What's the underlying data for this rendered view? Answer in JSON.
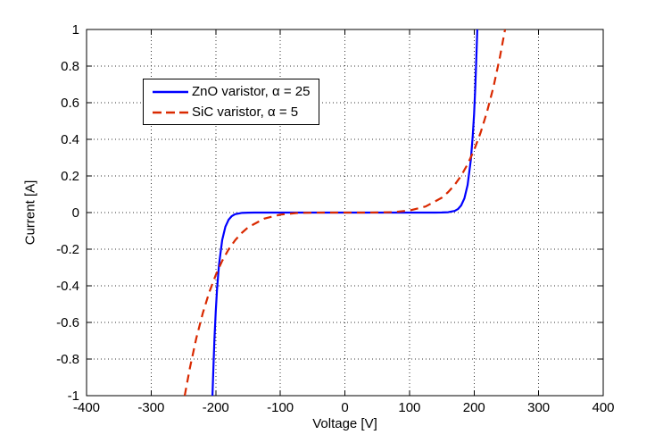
{
  "axes": {
    "xlabel": "Voltage [V]",
    "ylabel": "Current [A]",
    "xlim": [
      -400,
      400
    ],
    "ylim": [
      -1,
      1
    ],
    "xticks": [
      -400,
      -300,
      -200,
      -100,
      0,
      100,
      200,
      300,
      400
    ],
    "xtick_labels": [
      "-400",
      "-300",
      "-200",
      "-100",
      "0",
      "100",
      "200",
      "300",
      "400"
    ],
    "yticks": [
      -1,
      -0.8,
      -0.6,
      -0.4,
      -0.2,
      0,
      0.2,
      0.4,
      0.6,
      0.8,
      1
    ],
    "ytick_labels": [
      "-1",
      "-0.8",
      "-0.6",
      "-0.4",
      "-0.2",
      "0",
      "0.2",
      "0.4",
      "0.6",
      "0.8",
      "1"
    ],
    "grid_style": "dotted",
    "grid_color": "#333333",
    "axis_color": "#000000",
    "background": "#ffffff"
  },
  "legend": {
    "position": "upper-left-inside",
    "items": [
      {
        "label": "ZnO varistor, α = 25",
        "color": "#0000ff",
        "style": "solid"
      },
      {
        "label": "SiC varistor, α = 5",
        "color": "#d92900",
        "style": "dashed"
      }
    ]
  },
  "chart_data": {
    "type": "line",
    "title": "",
    "xlabel": "Voltage [V]",
    "ylabel": "Current [A]",
    "xlim": [
      -400,
      400
    ],
    "ylim": [
      -1,
      1
    ],
    "grid": true,
    "legend_position": "upper-left-inside",
    "series": [
      {
        "name": "ZnO varistor, α = 25",
        "slug": "zno",
        "color": "#0000ff",
        "line_style": "solid",
        "line_width": 2.2,
        "x": [
          -205,
          -204,
          -202,
          -200,
          -198,
          -195,
          -190,
          -185,
          -180,
          -175,
          -170,
          -160,
          -150,
          -140,
          -120,
          -100,
          -50,
          0,
          50,
          100,
          120,
          140,
          150,
          160,
          170,
          175,
          180,
          185,
          190,
          195,
          198,
          200,
          202,
          204,
          205
        ],
        "y": [
          -1,
          -0.885,
          -0.692,
          -0.539,
          -0.42,
          -0.286,
          -0.15,
          -0.077,
          -0.039,
          -0.019,
          -0.009,
          -0.002,
          -0.0004,
          -0.0001,
          0,
          0,
          0,
          0,
          0,
          0,
          0,
          0.0001,
          0.0004,
          0.002,
          0.009,
          0.019,
          0.039,
          0.077,
          0.15,
          0.286,
          0.42,
          0.539,
          0.692,
          0.885,
          1
        ]
      },
      {
        "name": "SiC varistor, α = 5",
        "slug": "sic",
        "color": "#d92900",
        "line_style": "dashed",
        "line_width": 2.2,
        "x": [
          -248,
          -240,
          -230,
          -220,
          -210,
          -200,
          -190,
          -180,
          -170,
          -160,
          -150,
          -125,
          -100,
          -75,
          -50,
          -25,
          0,
          25,
          50,
          75,
          100,
          125,
          150,
          160,
          170,
          180,
          190,
          200,
          210,
          220,
          230,
          240,
          248
        ],
        "y": [
          -1,
          -0.849,
          -0.686,
          -0.549,
          -0.435,
          -0.341,
          -0.264,
          -0.201,
          -0.151,
          -0.112,
          -0.081,
          -0.033,
          -0.011,
          -0.0025,
          -0.0003,
          0,
          0,
          0,
          0.0003,
          0.0025,
          0.011,
          0.033,
          0.081,
          0.112,
          0.151,
          0.201,
          0.264,
          0.341,
          0.435,
          0.549,
          0.686,
          0.849,
          1
        ]
      }
    ]
  }
}
